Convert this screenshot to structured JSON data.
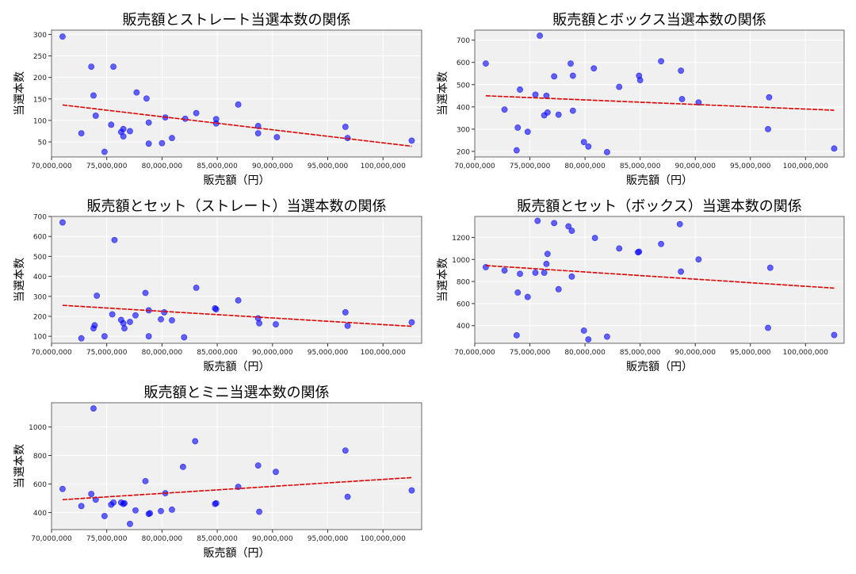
{
  "colors": {
    "panel_bg": "#f0f0f0",
    "grid": "#ffffff",
    "point": "#0000ff",
    "trend": "#e00000"
  },
  "chart_data": [
    {
      "type": "scatter",
      "title": "販売額とストレート当選本数の関係",
      "xlabel": "販売額（円）",
      "ylabel": "当選本数",
      "xlim": [
        70000000,
        103500000
      ],
      "ylim": [
        15,
        310
      ],
      "xticks": [
        "70,000,000",
        "75,000,000",
        "80,000,000",
        "85,000,000",
        "90,000,000",
        "95,000,000",
        "100,000,000"
      ],
      "xtick_values": [
        70000000,
        75000000,
        80000000,
        85000000,
        90000000,
        95000000,
        100000000
      ],
      "yticks": [
        "50",
        "100",
        "150",
        "200",
        "250",
        "300"
      ],
      "ytick_values": [
        50,
        100,
        150,
        200,
        250,
        300
      ],
      "grid": true,
      "points": [
        [
          71000000,
          295
        ],
        [
          72700000,
          70
        ],
        [
          73600000,
          225
        ],
        [
          73800000,
          158
        ],
        [
          74000000,
          111
        ],
        [
          74800000,
          27
        ],
        [
          75400000,
          90
        ],
        [
          75600000,
          225
        ],
        [
          76300000,
          73
        ],
        [
          76500000,
          63
        ],
        [
          76500000,
          80
        ],
        [
          77100000,
          75
        ],
        [
          77700000,
          165
        ],
        [
          78600000,
          151
        ],
        [
          78800000,
          46
        ],
        [
          78800000,
          95
        ],
        [
          80000000,
          47
        ],
        [
          80300000,
          107
        ],
        [
          80900000,
          59
        ],
        [
          82100000,
          104
        ],
        [
          83100000,
          117
        ],
        [
          84900000,
          103
        ],
        [
          84900000,
          93
        ],
        [
          86900000,
          137
        ],
        [
          88700000,
          87
        ],
        [
          88700000,
          70
        ],
        [
          90400000,
          61
        ],
        [
          96600000,
          85
        ],
        [
          96800000,
          59
        ],
        [
          102600000,
          53
        ]
      ],
      "trend": [
        [
          71000000,
          136
        ],
        [
          102600000,
          40
        ]
      ]
    },
    {
      "type": "scatter",
      "title": "販売額とボックス当選本数の関係",
      "xlabel": "販売額（円）",
      "ylabel": "当選本数",
      "xlim": [
        70000000,
        103500000
      ],
      "ylim": [
        175,
        745
      ],
      "xticks": [
        "70,000,000",
        "75,000,000",
        "80,000,000",
        "85,000,000",
        "90,000,000",
        "95,000,000",
        "100,000,000"
      ],
      "xtick_values": [
        70000000,
        75000000,
        80000000,
        85000000,
        90000000,
        95000000,
        100000000
      ],
      "yticks": [
        "200",
        "300",
        "400",
        "500",
        "600",
        "700"
      ],
      "ytick_values": [
        200,
        300,
        400,
        500,
        600,
        700
      ],
      "grid": true,
      "points": [
        [
          71000000,
          595
        ],
        [
          72700000,
          388
        ],
        [
          73800000,
          205
        ],
        [
          73900000,
          307
        ],
        [
          74100000,
          478
        ],
        [
          74800000,
          288
        ],
        [
          75500000,
          455
        ],
        [
          75900000,
          720
        ],
        [
          76300000,
          362
        ],
        [
          76500000,
          450
        ],
        [
          76600000,
          375
        ],
        [
          77200000,
          537
        ],
        [
          77600000,
          365
        ],
        [
          78700000,
          595
        ],
        [
          78900000,
          383
        ],
        [
          78900000,
          540
        ],
        [
          79900000,
          242
        ],
        [
          80300000,
          222
        ],
        [
          80800000,
          573
        ],
        [
          82000000,
          197
        ],
        [
          83100000,
          490
        ],
        [
          84900000,
          540
        ],
        [
          85000000,
          520
        ],
        [
          86900000,
          605
        ],
        [
          88700000,
          563
        ],
        [
          88800000,
          435
        ],
        [
          90300000,
          420
        ],
        [
          96600000,
          300
        ],
        [
          96700000,
          443
        ],
        [
          102600000,
          213
        ]
      ],
      "trend": [
        [
          71000000,
          450
        ],
        [
          102600000,
          385
        ]
      ]
    },
    {
      "type": "scatter",
      "title": "販売額とセット（ストレート）当選本数の関係",
      "xlabel": "販売額（円）",
      "ylabel": "当選本数",
      "xlim": [
        70000000,
        103500000
      ],
      "ylim": [
        65,
        700
      ],
      "xticks": [
        "70,000,000",
        "75,000,000",
        "80,000,000",
        "85,000,000",
        "90,000,000",
        "95,000,000",
        "100,000,000"
      ],
      "xtick_values": [
        70000000,
        75000000,
        80000000,
        85000000,
        90000000,
        95000000,
        100000000
      ],
      "yticks": [
        "100",
        "200",
        "300",
        "400",
        "500",
        "600",
        "700"
      ],
      "ytick_values": [
        100,
        200,
        300,
        400,
        500,
        600,
        700
      ],
      "grid": true,
      "points": [
        [
          71000000,
          670
        ],
        [
          72700000,
          90
        ],
        [
          73800000,
          140
        ],
        [
          73900000,
          155
        ],
        [
          74100000,
          303
        ],
        [
          74800000,
          100
        ],
        [
          75500000,
          210
        ],
        [
          75700000,
          582
        ],
        [
          76300000,
          182
        ],
        [
          76500000,
          165
        ],
        [
          76600000,
          140
        ],
        [
          77100000,
          172
        ],
        [
          77600000,
          205
        ],
        [
          78500000,
          317
        ],
        [
          78800000,
          100
        ],
        [
          78800000,
          230
        ],
        [
          79900000,
          185
        ],
        [
          80200000,
          220
        ],
        [
          80900000,
          180
        ],
        [
          82000000,
          95
        ],
        [
          83100000,
          343
        ],
        [
          84800000,
          240
        ],
        [
          84900000,
          235
        ],
        [
          86900000,
          280
        ],
        [
          88700000,
          190
        ],
        [
          88800000,
          165
        ],
        [
          90300000,
          160
        ],
        [
          96600000,
          220
        ],
        [
          96800000,
          153
        ],
        [
          102600000,
          170
        ]
      ],
      "trend": [
        [
          71000000,
          255
        ],
        [
          102600000,
          150
        ]
      ]
    },
    {
      "type": "scatter",
      "title": "販売額とセット（ボックス）当選本数の関係",
      "xlabel": "販売額（円）",
      "ylabel": "当選本数",
      "xlim": [
        70000000,
        103500000
      ],
      "ylim": [
        240,
        1390
      ],
      "xticks": [
        "70,000,000",
        "75,000,000",
        "80,000,000",
        "85,000,000",
        "90,000,000",
        "95,000,000",
        "100,000,000"
      ],
      "xtick_values": [
        70000000,
        75000000,
        80000000,
        85000000,
        90000000,
        95000000,
        100000000
      ],
      "yticks": [
        "400",
        "600",
        "800",
        "1000",
        "1200"
      ],
      "ytick_values": [
        400,
        600,
        800,
        1000,
        1200
      ],
      "grid": true,
      "points": [
        [
          71000000,
          930
        ],
        [
          72700000,
          900
        ],
        [
          73800000,
          313
        ],
        [
          73900000,
          700
        ],
        [
          74100000,
          870
        ],
        [
          74800000,
          660
        ],
        [
          75500000,
          880
        ],
        [
          75700000,
          1350
        ],
        [
          76300000,
          880
        ],
        [
          76500000,
          960
        ],
        [
          76600000,
          1050
        ],
        [
          77200000,
          1330
        ],
        [
          77600000,
          730
        ],
        [
          78500000,
          1300
        ],
        [
          78800000,
          1260
        ],
        [
          78800000,
          845
        ],
        [
          79900000,
          355
        ],
        [
          80300000,
          275
        ],
        [
          80900000,
          1195
        ],
        [
          82000000,
          300
        ],
        [
          83100000,
          1100
        ],
        [
          84800000,
          1065
        ],
        [
          84900000,
          1070
        ],
        [
          86900000,
          1140
        ],
        [
          88600000,
          1320
        ],
        [
          88700000,
          890
        ],
        [
          90300000,
          1000
        ],
        [
          96600000,
          380
        ],
        [
          96800000,
          925
        ],
        [
          102600000,
          315
        ]
      ],
      "trend": [
        [
          71000000,
          945
        ],
        [
          102600000,
          740
        ]
      ]
    },
    {
      "type": "scatter",
      "title": "販売額とミニ当選本数の関係",
      "xlabel": "販売額（円）",
      "ylabel": "当選本数",
      "xlim": [
        70000000,
        103500000
      ],
      "ylim": [
        280,
        1170
      ],
      "xticks": [
        "70,000,000",
        "75,000,000",
        "80,000,000",
        "85,000,000",
        "90,000,000",
        "95,000,000",
        "100,000,000"
      ],
      "xtick_values": [
        70000000,
        75000000,
        80000000,
        85000000,
        90000000,
        95000000,
        100000000
      ],
      "yticks": [
        "400",
        "600",
        "800",
        "1000"
      ],
      "ytick_values": [
        400,
        600,
        800,
        1000
      ],
      "grid": true,
      "points": [
        [
          71000000,
          565
        ],
        [
          72700000,
          445
        ],
        [
          73600000,
          530
        ],
        [
          73800000,
          1130
        ],
        [
          74000000,
          490
        ],
        [
          74800000,
          375
        ],
        [
          75400000,
          455
        ],
        [
          75600000,
          470
        ],
        [
          76300000,
          470
        ],
        [
          76500000,
          460
        ],
        [
          76600000,
          465
        ],
        [
          77100000,
          320
        ],
        [
          77600000,
          415
        ],
        [
          78500000,
          620
        ],
        [
          78800000,
          390
        ],
        [
          78900000,
          395
        ],
        [
          79900000,
          410
        ],
        [
          80300000,
          535
        ],
        [
          80900000,
          420
        ],
        [
          81900000,
          720
        ],
        [
          83000000,
          900
        ],
        [
          84800000,
          460
        ],
        [
          84900000,
          465
        ],
        [
          86900000,
          580
        ],
        [
          88700000,
          730
        ],
        [
          88800000,
          405
        ],
        [
          90300000,
          685
        ],
        [
          96600000,
          835
        ],
        [
          96800000,
          510
        ],
        [
          102600000,
          555
        ]
      ],
      "trend": [
        [
          71000000,
          490
        ],
        [
          102600000,
          645
        ]
      ]
    }
  ]
}
